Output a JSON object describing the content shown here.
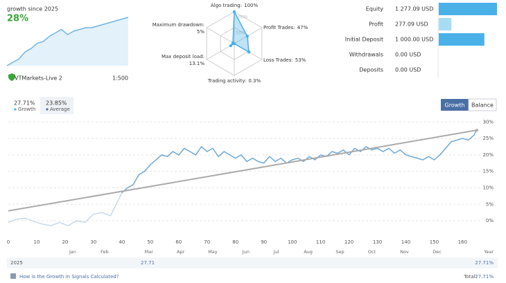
{
  "summary": {
    "title": "growth since 2025",
    "growth": "28%",
    "account": "VTMarkets-Live 2",
    "leverage": "1:500"
  },
  "stats": {
    "growth": "27.71%",
    "growth_label": "Growth",
    "average": "23.85%",
    "average_label": "Average"
  },
  "tabs": [
    "Growth",
    "Balance"
  ],
  "footer": {
    "year": "2025",
    "value": "27.71",
    "total_row": "27.71%",
    "link": "How is the Growth in Signals Calculated?",
    "total_label": "Total:",
    "total": "27.71%"
  },
  "chart_data": [
    {
      "type": "area",
      "color": "#6fb4e6",
      "ylim": [
        0,
        30
      ],
      "values": [
        0,
        2,
        4,
        8,
        10,
        13,
        14,
        17,
        19,
        21,
        18,
        20,
        21,
        22,
        22,
        23,
        24,
        25,
        26,
        27,
        28
      ]
    },
    {
      "type": "radar",
      "color": "#4ab0e8",
      "categories": [
        "Algo trading:",
        "Profit Trades:",
        "Loss Trades:",
        "Trading activity:",
        "Max deposit load:",
        "Maximum drawdown:"
      ],
      "value_labels": [
        "100%",
        "47%",
        "53%",
        "0.3%",
        "13.1%",
        "5%"
      ],
      "values": [
        100,
        47,
        53,
        0.3,
        13.1,
        5
      ],
      "rlim": [
        0,
        100
      ],
      "rticks": [
        {
          "value": 50,
          "label": "50%"
        },
        {
          "value": 100,
          "label": "100%"
        }
      ]
    },
    {
      "type": "hbar",
      "categories": [
        "Equity",
        "Profit",
        "Initial Deposit",
        "Withdrawals",
        "Deposits"
      ],
      "values": [
        1277.09,
        277.09,
        1000,
        0,
        0
      ],
      "value_labels": [
        "1 277.09 USD",
        "277.09 USD",
        "1 000.00 USD",
        "0.00 USD",
        "0.00 USD"
      ],
      "colors": [
        "#4ab0e8",
        "#a8dcf5",
        "#4ab0e8",
        "#4ab0e8",
        "#4ab0e8"
      ],
      "xlim": [
        0,
        1277.09
      ]
    },
    {
      "type": "line",
      "grid": true,
      "xlim": [
        0,
        166
      ],
      "ylim": [
        -4.5,
        31
      ],
      "xticks": [
        0,
        10,
        20,
        30,
        40,
        50,
        60,
        70,
        80,
        90,
        100,
        110,
        120,
        130,
        140,
        150,
        160
      ],
      "yticks": [
        {
          "value": 0,
          "label": "0%"
        },
        {
          "value": 5,
          "label": "5%"
        },
        {
          "value": 10,
          "label": "10%"
        },
        {
          "value": 15,
          "label": "15%"
        },
        {
          "value": 20,
          "label": "20%"
        },
        {
          "value": 25,
          "label": "25%"
        },
        {
          "value": 30,
          "label": "30%"
        }
      ],
      "months": {
        "labels": [
          "Jan",
          "Feb",
          "Mar",
          "Apr",
          "May",
          "Jun",
          "Jul",
          "Aug",
          "Sep",
          "Oct",
          "Nov",
          "Dec"
        ],
        "x": [
          22.7,
          33.9,
          49.5,
          60.7,
          72,
          83.7,
          94.4,
          105.6,
          116.8,
          128,
          139.5,
          151
        ]
      },
      "xlabel": "Year",
      "series": [
        {
          "color": "#c9d9e8",
          "x": [
            0,
            3,
            6,
            9,
            12,
            15,
            18,
            21,
            24,
            27,
            30,
            33,
            36,
            38,
            40
          ],
          "values": [
            -0.5,
            0.5,
            0.8,
            -0.2,
            -1,
            -1.5,
            -0.5,
            -1.5,
            0,
            -0.5,
            2,
            2.5,
            1.5,
            5,
            8.5
          ]
        },
        {
          "color": "#6fa8d6",
          "x": [
            40,
            42,
            44,
            46,
            48,
            50,
            52,
            54,
            56,
            58,
            60,
            62,
            64,
            66,
            68,
            70,
            72,
            74,
            76,
            78,
            80,
            82,
            84,
            86,
            88,
            90,
            92,
            94,
            96,
            98,
            100,
            102,
            104,
            106,
            108,
            110,
            112,
            114,
            116,
            118,
            120,
            122,
            124,
            126,
            128,
            130,
            132,
            134,
            136,
            138,
            140,
            142,
            144,
            146,
            148,
            150,
            152,
            154,
            156,
            158,
            160,
            162,
            164,
            165
          ],
          "values": [
            8.5,
            10,
            11,
            14,
            15,
            17,
            18.5,
            20,
            19.5,
            21,
            20,
            22,
            21,
            20,
            22.5,
            21,
            22,
            19.5,
            21,
            20,
            19,
            20,
            18,
            19,
            18,
            17.5,
            19.5,
            18,
            19,
            17.5,
            18.5,
            19,
            18,
            19.5,
            18.5,
            20,
            19.5,
            21,
            20.5,
            21.5,
            20,
            22,
            21,
            22.5,
            21.5,
            22,
            21,
            22,
            20.5,
            21.5,
            20,
            19.5,
            19,
            18.5,
            19.5,
            18.5,
            20,
            22,
            24,
            24.5,
            25,
            24.5,
            26,
            27.7
          ]
        },
        {
          "color": "#aaaaaa",
          "x": [
            0,
            165
          ],
          "values": [
            3,
            27.5
          ]
        }
      ]
    }
  ]
}
